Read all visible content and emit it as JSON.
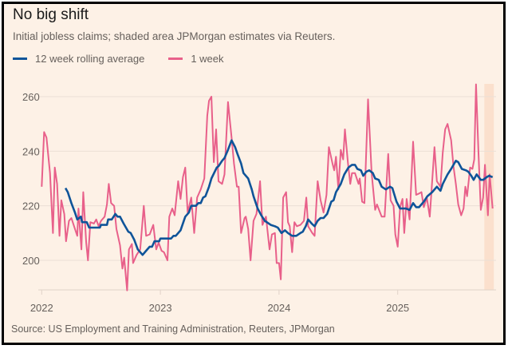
{
  "title": "No big shift",
  "subtitle": "Initial jobless claims; shaded area JPMorgan estimates via Reuters.",
  "source": "Source: US Employment and Training Administration, Reuters, JPMorgan",
  "colors": {
    "background": "#fdf1e6",
    "avg": "#0f5499",
    "week": "#e8608a",
    "shade": "#fbe0cd",
    "grid": "#ebe0d6",
    "text": "#66605c"
  },
  "chart_data": {
    "type": "line",
    "title": "No big shift",
    "xlabel": "",
    "ylabel": "",
    "x_ticks": [
      "2022",
      "2023",
      "2024",
      "2025"
    ],
    "y_ticks": [
      200,
      220,
      240,
      260
    ],
    "xlim": [
      2022.0,
      2025.82
    ],
    "ylim": [
      189,
      265
    ],
    "grid": "horizontal",
    "legend": "top-left",
    "shaded_region": {
      "label": "JPMorgan estimates",
      "x": [
        2025.73,
        2025.81
      ]
    },
    "series": [
      {
        "name": "12 week rolling average",
        "color": "#0f5499",
        "points": [
          [
            2022.2,
            226.5
          ],
          [
            2022.22,
            225
          ],
          [
            2022.25,
            221
          ],
          [
            2022.28,
            217.5
          ],
          [
            2022.3,
            215
          ],
          [
            2022.33,
            216
          ],
          [
            2022.34,
            214
          ],
          [
            2022.38,
            214
          ],
          [
            2022.4,
            212
          ],
          [
            2022.49,
            212
          ],
          [
            2022.5,
            213
          ],
          [
            2022.55,
            213
          ],
          [
            2022.56,
            215
          ],
          [
            2022.59,
            215
          ],
          [
            2022.62,
            217
          ],
          [
            2022.64,
            216
          ],
          [
            2022.66,
            216
          ],
          [
            2022.69,
            213.5
          ],
          [
            2022.73,
            210.5
          ],
          [
            2022.75,
            210
          ],
          [
            2022.78,
            207.5
          ],
          [
            2022.81,
            204
          ],
          [
            2022.85,
            202
          ],
          [
            2022.88,
            203.5
          ],
          [
            2022.91,
            205
          ],
          [
            2022.93,
            205
          ],
          [
            2022.95,
            207
          ],
          [
            2022.99,
            207
          ],
          [
            2023.0,
            208
          ],
          [
            2023.09,
            208
          ],
          [
            2023.11,
            209
          ],
          [
            2023.13,
            209
          ],
          [
            2023.17,
            211
          ],
          [
            2023.21,
            216
          ],
          [
            2023.24,
            217.5
          ],
          [
            2023.26,
            220
          ],
          [
            2023.3,
            220
          ],
          [
            2023.32,
            221
          ],
          [
            2023.34,
            221
          ],
          [
            2023.36,
            223
          ],
          [
            2023.38,
            223.5
          ],
          [
            2023.41,
            227
          ],
          [
            2023.43,
            230
          ],
          [
            2023.475,
            234
          ],
          [
            2023.49,
            234.5
          ],
          [
            2023.52,
            236.5
          ],
          [
            2023.54,
            237.5
          ],
          [
            2023.57,
            240.5
          ],
          [
            2023.6,
            244
          ],
          [
            2023.63,
            241.5
          ],
          [
            2023.65,
            239
          ],
          [
            2023.68,
            235.5
          ],
          [
            2023.7,
            232
          ],
          [
            2023.74,
            230
          ],
          [
            2023.77,
            226
          ],
          [
            2023.785,
            223.5
          ],
          [
            2023.82,
            219
          ],
          [
            2023.85,
            216.5
          ],
          [
            2023.88,
            214.5
          ],
          [
            2023.93,
            213
          ],
          [
            2023.965,
            212.5
          ],
          [
            2023.99,
            212
          ],
          [
            2024.02,
            210
          ],
          [
            2024.05,
            211
          ],
          [
            2024.075,
            210
          ],
          [
            2024.11,
            209
          ],
          [
            2024.145,
            209
          ],
          [
            2024.18,
            210
          ],
          [
            2024.2,
            210.5
          ],
          [
            2024.225,
            212.5
          ],
          [
            2024.245,
            215
          ],
          [
            2024.275,
            213.5
          ],
          [
            2024.3,
            212.5
          ],
          [
            2024.325,
            214.5
          ],
          [
            2024.35,
            215.5
          ],
          [
            2024.375,
            215.5
          ],
          [
            2024.405,
            217
          ],
          [
            2024.44,
            221.5
          ],
          [
            2024.46,
            222
          ],
          [
            2024.48,
            225
          ],
          [
            2024.52,
            228
          ],
          [
            2024.55,
            231.5
          ],
          [
            2024.585,
            234
          ],
          [
            2024.615,
            235
          ],
          [
            2024.64,
            235
          ],
          [
            2024.66,
            233.5
          ],
          [
            2024.69,
            233
          ],
          [
            2024.71,
            231
          ],
          [
            2024.735,
            232.5
          ],
          [
            2024.76,
            233
          ],
          [
            2024.79,
            232
          ],
          [
            2024.81,
            230
          ],
          [
            2024.84,
            229.5
          ],
          [
            2024.865,
            227
          ],
          [
            2024.9,
            226
          ],
          [
            2024.935,
            227
          ],
          [
            2024.955,
            226.5
          ],
          [
            2024.99,
            221.5
          ],
          [
            2025.02,
            219
          ],
          [
            2025.045,
            219
          ],
          [
            2025.07,
            219
          ],
          [
            2025.1,
            218.5
          ],
          [
            2025.13,
            221
          ],
          [
            2025.155,
            219.5
          ],
          [
            2025.18,
            219.5
          ],
          [
            2025.22,
            221.5
          ],
          [
            2025.25,
            223.5
          ],
          [
            2025.29,
            225
          ],
          [
            2025.33,
            227
          ],
          [
            2025.36,
            225.5
          ],
          [
            2025.38,
            228
          ],
          [
            2025.42,
            231.5
          ],
          [
            2025.45,
            233.5
          ],
          [
            2025.49,
            236.5
          ],
          [
            2025.51,
            236
          ],
          [
            2025.54,
            233.5
          ],
          [
            2025.575,
            233
          ],
          [
            2025.595,
            232.5
          ],
          [
            2025.62,
            231
          ],
          [
            2025.64,
            229.5
          ],
          [
            2025.665,
            231.5
          ],
          [
            2025.7,
            229.5
          ],
          [
            2025.72,
            229.5
          ],
          [
            2025.75,
            230.5
          ],
          [
            2025.77,
            231
          ],
          [
            2025.8,
            230.5
          ]
        ]
      },
      {
        "name": "1 week",
        "color": "#e8608a",
        "points": [
          [
            2022.0,
            227
          ],
          [
            2022.02,
            247
          ],
          [
            2022.04,
            245
          ],
          [
            2022.07,
            232
          ],
          [
            2022.095,
            210
          ],
          [
            2022.11,
            234
          ],
          [
            2022.13,
            228
          ],
          [
            2022.15,
            209
          ],
          [
            2022.165,
            222
          ],
          [
            2022.19,
            217
          ],
          [
            2022.205,
            207
          ],
          [
            2022.23,
            214.5
          ],
          [
            2022.25,
            215.5
          ],
          [
            2022.28,
            211.5
          ],
          [
            2022.3,
            209
          ],
          [
            2022.31,
            219
          ],
          [
            2022.335,
            204
          ],
          [
            2022.35,
            225
          ],
          [
            2022.375,
            206.5
          ],
          [
            2022.39,
            200
          ],
          [
            2022.41,
            214
          ],
          [
            2022.44,
            213.5
          ],
          [
            2022.46,
            215
          ],
          [
            2022.48,
            212.5
          ],
          [
            2022.5,
            214.5
          ],
          [
            2022.53,
            216
          ],
          [
            2022.55,
            220.5
          ],
          [
            2022.565,
            228
          ],
          [
            2022.585,
            221
          ],
          [
            2022.61,
            220
          ],
          [
            2022.63,
            211.5
          ],
          [
            2022.66,
            205.5
          ],
          [
            2022.68,
            197
          ],
          [
            2022.695,
            201
          ],
          [
            2022.72,
            189
          ],
          [
            2022.735,
            204
          ],
          [
            2022.76,
            206
          ],
          [
            2022.77,
            199
          ],
          [
            2022.8,
            202
          ],
          [
            2022.83,
            204
          ],
          [
            2022.86,
            220
          ],
          [
            2022.88,
            209
          ],
          [
            2022.91,
            209.5
          ],
          [
            2022.94,
            213
          ],
          [
            2022.965,
            204
          ],
          [
            2022.985,
            206.5
          ],
          [
            2023.01,
            203.5
          ],
          [
            2023.03,
            203
          ],
          [
            2023.06,
            200
          ],
          [
            2023.075,
            216
          ],
          [
            2023.1,
            219
          ],
          [
            2023.12,
            216.5
          ],
          [
            2023.15,
            229
          ],
          [
            2023.17,
            222.5
          ],
          [
            2023.19,
            230.5
          ],
          [
            2023.21,
            234
          ],
          [
            2023.23,
            217.5
          ],
          [
            2023.26,
            223
          ],
          [
            2023.285,
            210
          ],
          [
            2023.31,
            223
          ],
          [
            2023.34,
            226
          ],
          [
            2023.37,
            230
          ],
          [
            2023.395,
            253
          ],
          [
            2023.41,
            258.5
          ],
          [
            2023.43,
            260
          ],
          [
            2023.45,
            236
          ],
          [
            2023.47,
            248
          ],
          [
            2023.49,
            229
          ],
          [
            2023.52,
            228
          ],
          [
            2023.54,
            231.5
          ],
          [
            2023.57,
            258
          ],
          [
            2023.6,
            245
          ],
          [
            2023.62,
            235.5
          ],
          [
            2023.645,
            227
          ],
          [
            2023.66,
            227
          ],
          [
            2023.68,
            210
          ],
          [
            2023.71,
            215.5
          ],
          [
            2023.72,
            216
          ],
          [
            2023.74,
            211.5
          ],
          [
            2023.76,
            200
          ],
          [
            2023.785,
            214.5
          ],
          [
            2023.81,
            217
          ],
          [
            2023.84,
            229
          ],
          [
            2023.86,
            213
          ],
          [
            2023.89,
            216
          ],
          [
            2023.92,
            204
          ],
          [
            2023.94,
            209.5
          ],
          [
            2023.965,
            210
          ],
          [
            2023.98,
            199
          ],
          [
            2024.0,
            199
          ],
          [
            2024.015,
            193
          ],
          [
            2024.035,
            223
          ],
          [
            2024.06,
            225
          ],
          [
            2024.075,
            214
          ],
          [
            2024.09,
            212.5
          ],
          [
            2024.11,
            203
          ],
          [
            2024.13,
            214
          ],
          [
            2024.15,
            212.5
          ],
          [
            2024.18,
            213
          ],
          [
            2024.21,
            214.5
          ],
          [
            2024.23,
            223
          ],
          [
            2024.245,
            212.5
          ],
          [
            2024.28,
            210
          ],
          [
            2024.3,
            209
          ],
          [
            2024.325,
            229
          ],
          [
            2024.35,
            222
          ],
          [
            2024.375,
            217.5
          ],
          [
            2024.4,
            224
          ],
          [
            2024.42,
            241.5
          ],
          [
            2024.45,
            235.5
          ],
          [
            2024.465,
            233
          ],
          [
            2024.48,
            238
          ],
          [
            2024.5,
            226
          ],
          [
            2024.52,
            240.5
          ],
          [
            2024.54,
            237
          ],
          [
            2024.555,
            248
          ],
          [
            2024.58,
            236
          ],
          [
            2024.6,
            228
          ],
          [
            2024.615,
            232
          ],
          [
            2024.64,
            232
          ],
          [
            2024.67,
            228
          ],
          [
            2024.68,
            230
          ],
          [
            2024.7,
            221.5
          ],
          [
            2024.72,
            221
          ],
          [
            2024.75,
            259
          ],
          [
            2024.78,
            232
          ],
          [
            2024.81,
            218.5
          ],
          [
            2024.825,
            220.5
          ],
          [
            2024.865,
            216
          ],
          [
            2024.89,
            216
          ],
          [
            2024.92,
            239
          ],
          [
            2024.94,
            222
          ],
          [
            2024.965,
            220
          ],
          [
            2024.98,
            209.5
          ],
          [
            2025.0,
            205
          ],
          [
            2025.02,
            219.5
          ],
          [
            2025.04,
            222.5
          ],
          [
            2025.055,
            210
          ],
          [
            2025.075,
            222.5
          ],
          [
            2025.1,
            215
          ],
          [
            2025.13,
            243.5
          ],
          [
            2025.155,
            224
          ],
          [
            2025.18,
            224.5
          ],
          [
            2025.2,
            225
          ],
          [
            2025.22,
            219.5
          ],
          [
            2025.245,
            223
          ],
          [
            2025.27,
            216
          ],
          [
            2025.285,
            225.5
          ],
          [
            2025.31,
            241.5
          ],
          [
            2025.33,
            229
          ],
          [
            2025.36,
            227
          ],
          [
            2025.38,
            239.5
          ],
          [
            2025.4,
            248
          ],
          [
            2025.42,
            250
          ],
          [
            2025.45,
            244
          ],
          [
            2025.47,
            234.5
          ],
          [
            2025.49,
            228
          ],
          [
            2025.51,
            220.5
          ],
          [
            2025.535,
            216.5
          ],
          [
            2025.555,
            219
          ],
          [
            2025.57,
            227
          ],
          [
            2025.585,
            223.5
          ],
          [
            2025.61,
            234
          ],
          [
            2025.63,
            233.5
          ],
          [
            2025.645,
            237
          ],
          [
            2025.66,
            264.5
          ],
          [
            2025.68,
            240
          ],
          [
            2025.7,
            218.5
          ],
          [
            2025.72,
            223
          ],
          [
            2025.735,
            235
          ],
          [
            2025.76,
            216.5
          ],
          [
            2025.775,
            231.5
          ],
          [
            2025.8,
            219
          ]
        ]
      }
    ]
  }
}
